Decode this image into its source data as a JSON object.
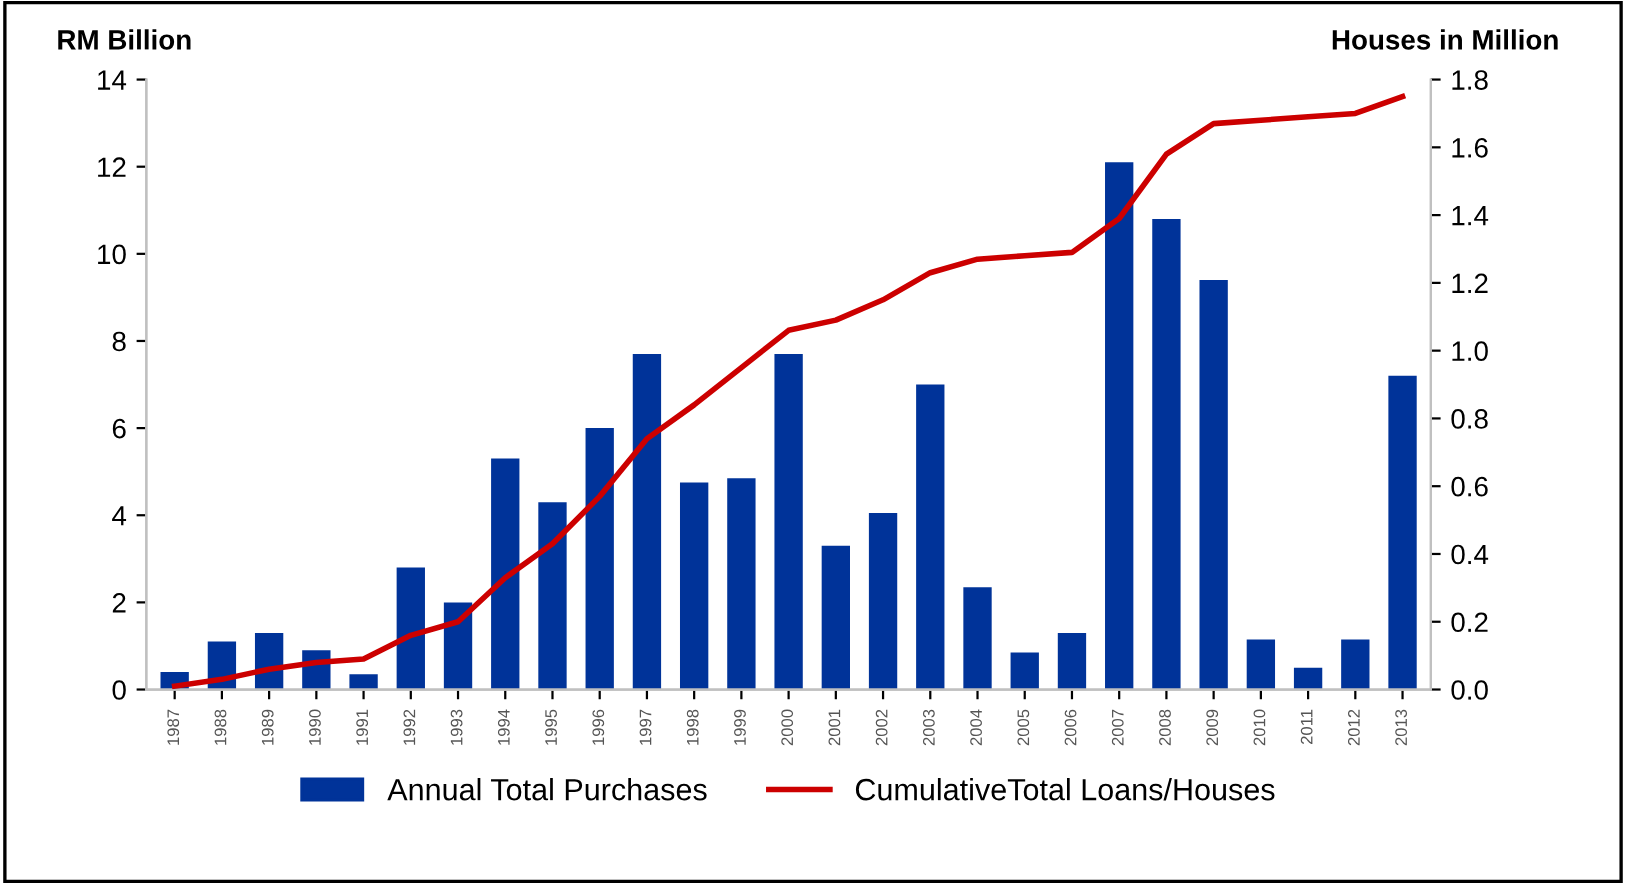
{
  "chart_data": {
    "type": "bar",
    "ylabel": "RM Billion",
    "y2label": "Houses in Million",
    "categories": [
      "1987",
      "1988",
      "1989",
      "1990",
      "1991",
      "1992",
      "1993",
      "1994",
      "1995",
      "1996",
      "1997",
      "1998",
      "1999",
      "2000",
      "2001",
      "2002",
      "2003",
      "2004",
      "2005",
      "2006",
      "2007",
      "2008",
      "2009",
      "2010",
      "2011",
      "2012",
      "2013"
    ],
    "series": [
      {
        "name": "Annual Total Purchases",
        "color": "#003399",
        "values": [
          0.4,
          1.1,
          1.3,
          0.9,
          0.35,
          2.8,
          2.0,
          5.3,
          4.3,
          6.0,
          7.7,
          4.75,
          4.85,
          7.7,
          3.3,
          4.05,
          7.0,
          2.35,
          0.85,
          1.3,
          12.1,
          10.8,
          9.4,
          1.15,
          0.5,
          1.15,
          7.2
        ]
      },
      {
        "name": "CumulativeTotal Loans/Houses",
        "type": "line",
        "axis": "y2",
        "color": "#cc0000",
        "values": [
          0.01,
          0.03,
          0.06,
          0.08,
          0.09,
          0.16,
          0.2,
          0.33,
          0.43,
          0.57,
          0.74,
          0.84,
          0.95,
          1.06,
          1.09,
          1.15,
          1.23,
          1.27,
          1.28,
          1.29,
          1.39,
          1.58,
          1.67,
          1.68,
          1.69,
          1.7,
          1.75
        ]
      }
    ],
    "ylim": [
      0,
      14
    ],
    "yticks": [
      0,
      2,
      4,
      6,
      8,
      10,
      12,
      14
    ],
    "y2lim": [
      0,
      1.8
    ],
    "y2ticks": [
      {
        "value": 0,
        "label": "0.0"
      },
      {
        "value": 0.2,
        "label": "0.2"
      },
      {
        "value": 0.4,
        "label": "0.4"
      },
      {
        "value": 0.6,
        "label": "0.6"
      },
      {
        "value": 0.8,
        "label": "0.8"
      },
      {
        "value": 1.0,
        "label": "1.0"
      },
      {
        "value": 1.2,
        "label": "1.2"
      },
      {
        "value": 1.4,
        "label": "1.4"
      },
      {
        "value": 1.6,
        "label": "1.6"
      },
      {
        "value": 1.8,
        "label": "1.8"
      }
    ],
    "grid": false,
    "legend": "bottom"
  }
}
